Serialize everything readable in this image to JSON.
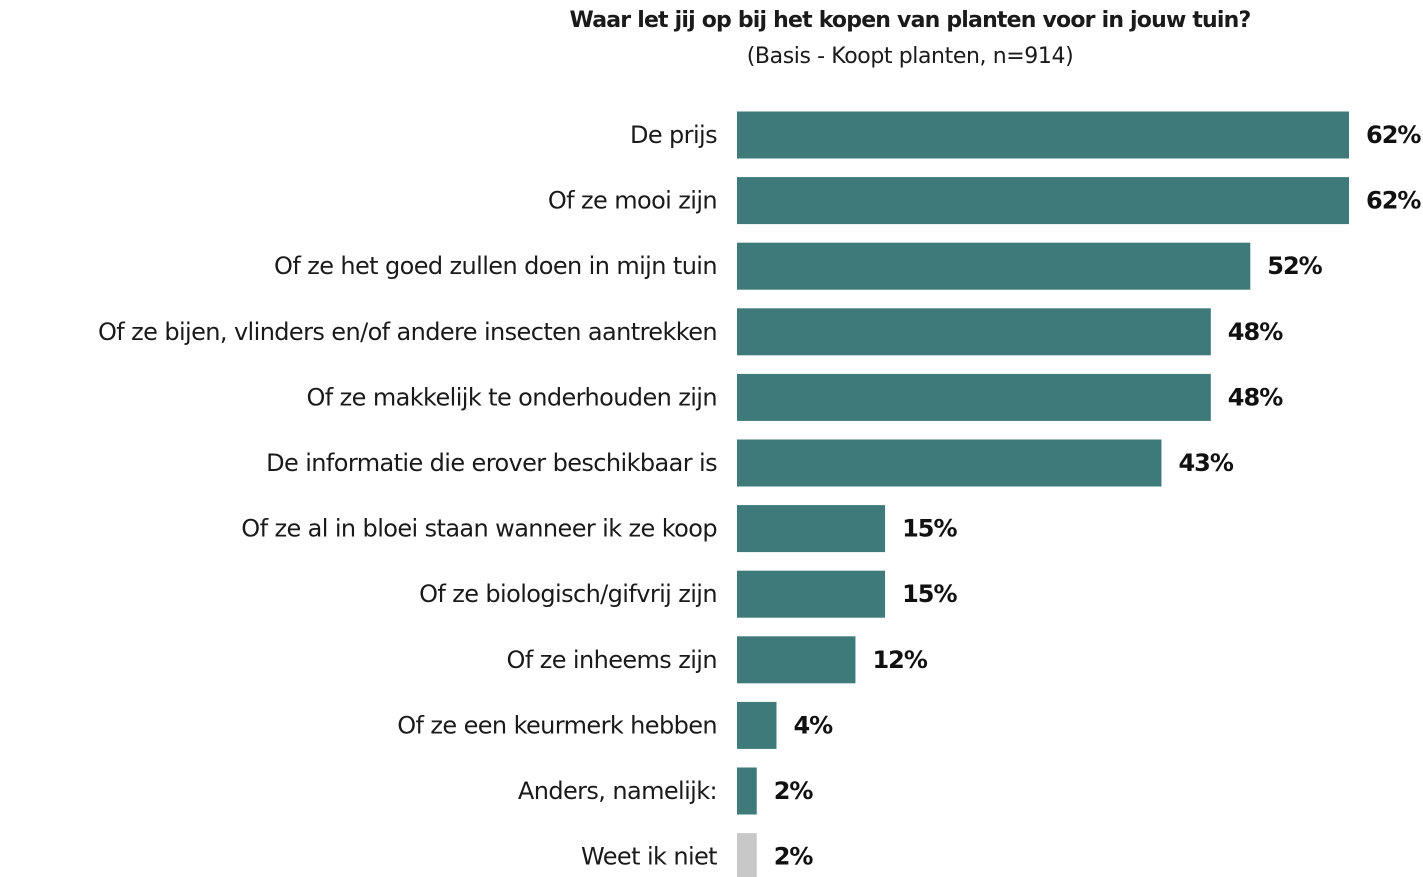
{
  "chart_data": {
    "type": "bar",
    "orientation": "horizontal",
    "title": "Waar let jij op bij het kopen van planten voor in jouw tuin?",
    "subtitle": "(Basis - Koopt planten, n=914)",
    "categories": [
      "De prijs",
      "Of ze mooi zijn",
      "Of ze het goed zullen doen in mijn tuin",
      "Of ze bijen, vlinders en/of andere insecten aantrekken",
      "Of ze makkelijk te onderhouden zijn",
      "De informatie die erover beschikbaar is",
      "Of ze al in bloei staan wanneer ik ze koop",
      "Of ze biologisch/gifvrij zijn",
      "Of ze inheems zijn",
      "Of ze een keurmerk hebben",
      "Anders, namelijk:",
      "Weet ik niet"
    ],
    "values": [
      62,
      62,
      52,
      48,
      48,
      43,
      15,
      15,
      12,
      4,
      2,
      2
    ],
    "value_labels": [
      "62%",
      "62%",
      "52%",
      "48%",
      "48%",
      "43%",
      "15%",
      "15%",
      "12%",
      "4%",
      "2%",
      "2%"
    ],
    "bar_colors": [
      "#3e7a7a",
      "#3e7a7a",
      "#3e7a7a",
      "#3e7a7a",
      "#3e7a7a",
      "#3e7a7a",
      "#3e7a7a",
      "#3e7a7a",
      "#3e7a7a",
      "#3e7a7a",
      "#3e7a7a",
      "#c8c8c8"
    ],
    "xlim": [
      0,
      62
    ],
    "grid": false,
    "legend": "none"
  }
}
